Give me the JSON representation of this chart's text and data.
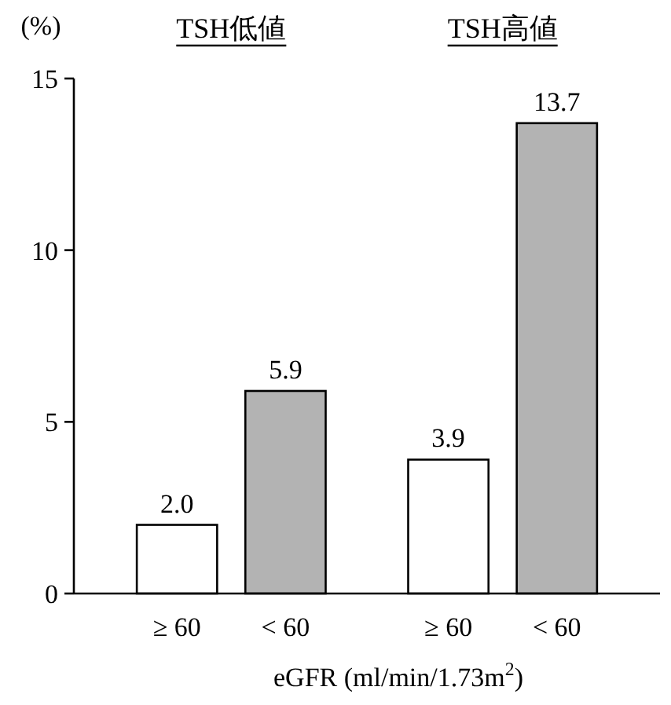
{
  "chart_data": {
    "type": "bar",
    "ylabel": "(%)",
    "xlabel": "eGFR (ml/min/1.73m$^{2}$)",
    "categories": [
      "≥ 60",
      "< 60",
      "≥ 60",
      "< 60"
    ],
    "values": [
      2.0,
      5.9,
      3.9,
      13.7
    ],
    "colors": [
      "#ffffff",
      "#b3b3b3",
      "#ffffff",
      "#b3b3b3"
    ],
    "value_labels": [
      "2.0",
      "5.9",
      "3.9",
      "13.7"
    ],
    "annotations": [
      "TSH低値",
      "TSH高値"
    ],
    "ylim": [
      0,
      15
    ],
    "yticks": [
      0,
      5,
      10,
      15
    ]
  }
}
